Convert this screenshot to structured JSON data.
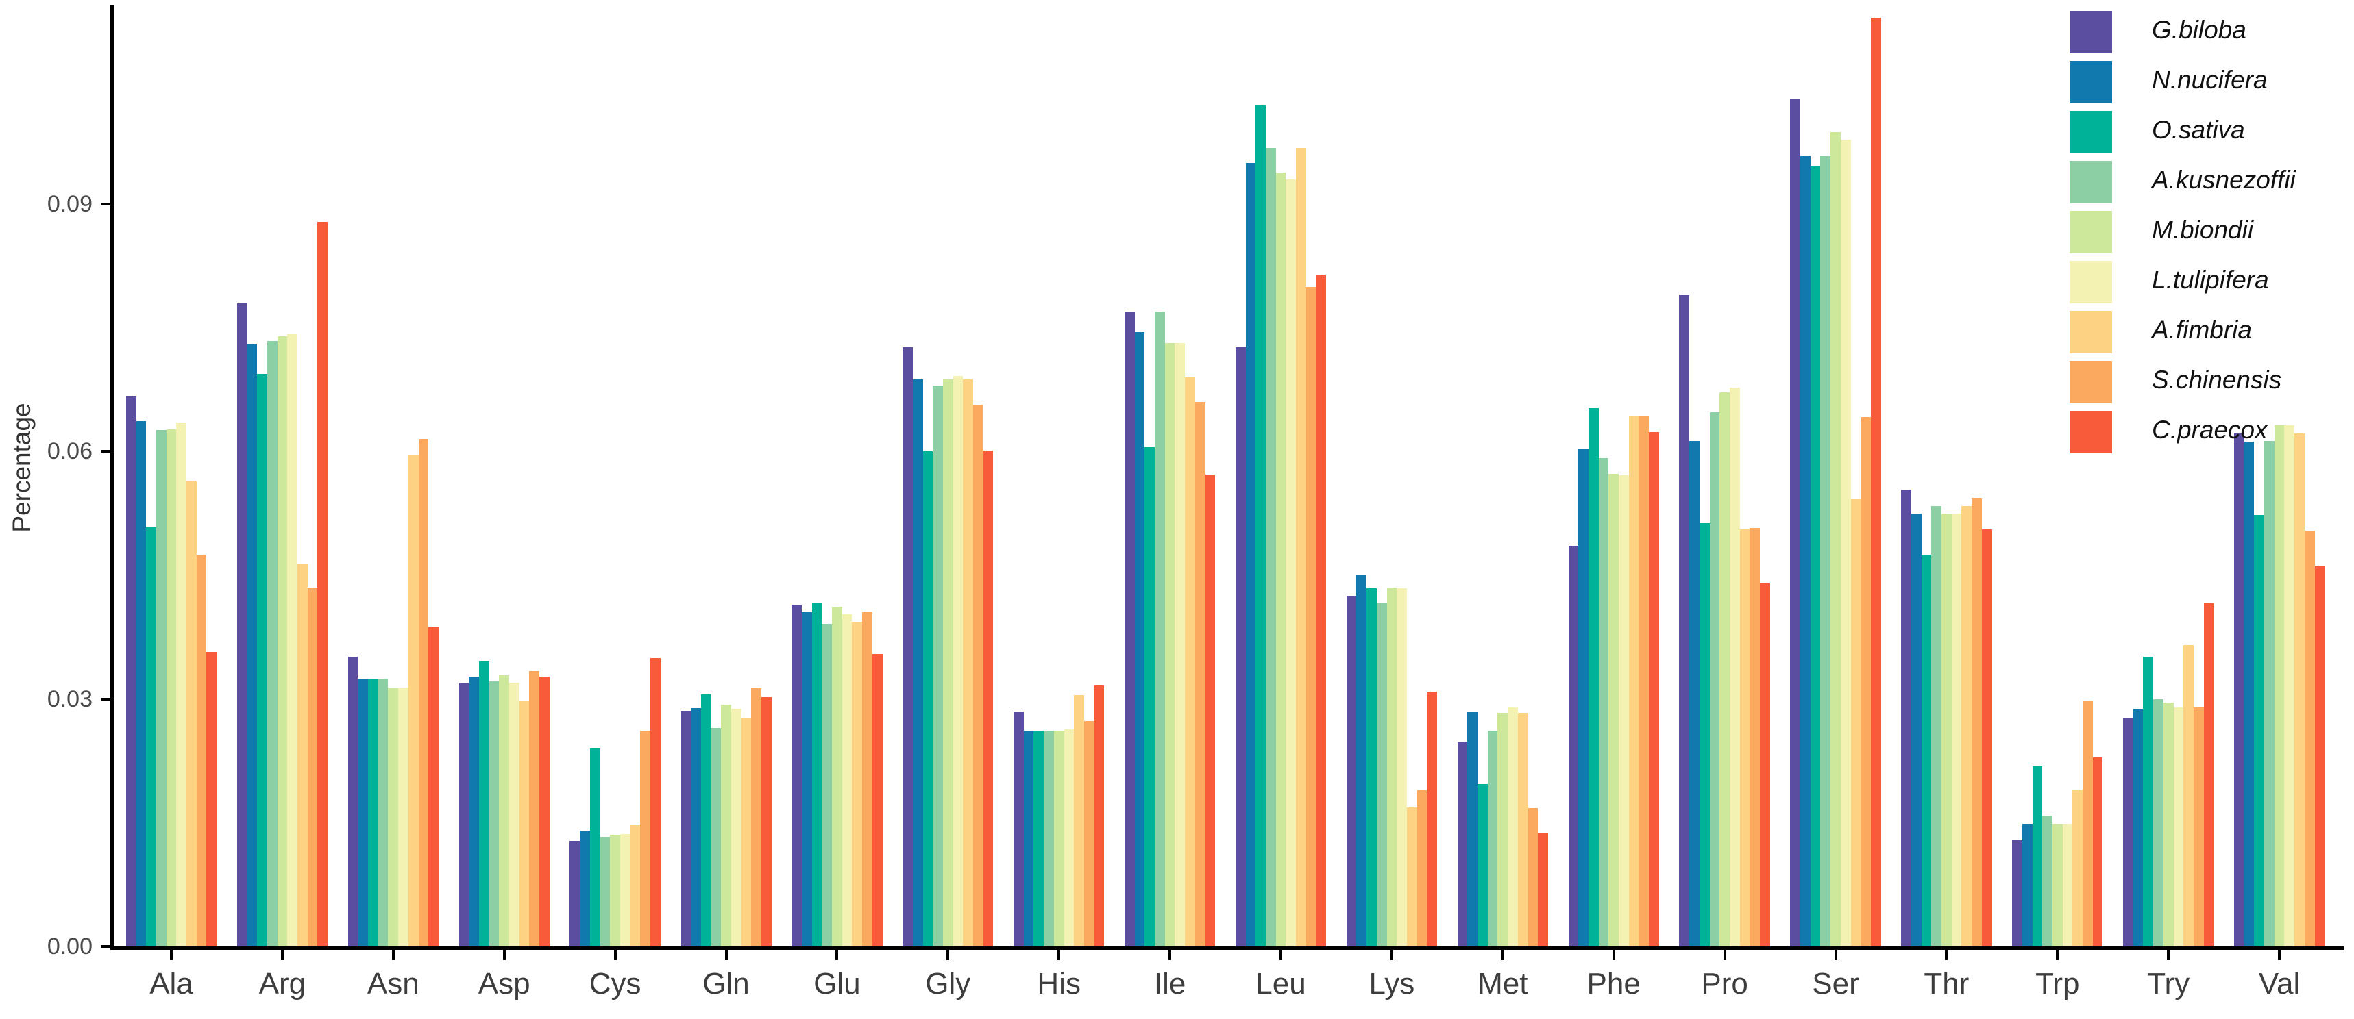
{
  "chart_data": {
    "type": "bar",
    "title": "",
    "xlabel": "",
    "ylabel": "Percentage",
    "ylim": [
      0,
      0.1141
    ],
    "yticks": [
      0,
      0.03,
      0.06,
      0.09
    ],
    "ytick_labels": [
      "0.00",
      "0.03",
      "0.06",
      "0.09"
    ],
    "grid": false,
    "legend_position": "top-right",
    "categories": [
      "Ala",
      "Arg",
      "Asn",
      "Asp",
      "Cys",
      "Gln",
      "Glu",
      "Gly",
      "His",
      "Ile",
      "Leu",
      "Lys",
      "Met",
      "Phe",
      "Pro",
      "Ser",
      "Thr",
      "Trp",
      "Try",
      "Val"
    ],
    "series": [
      {
        "name": "G.biloba",
        "color": "#5b4ea1",
        "values": [
          0.0668,
          0.078,
          0.0351,
          0.032,
          0.0128,
          0.0286,
          0.0414,
          0.0727,
          0.0285,
          0.077,
          0.0727,
          0.0425,
          0.0248,
          0.0486,
          0.079,
          0.1028,
          0.0554,
          0.0129,
          0.0277,
          0.0623
        ]
      },
      {
        "name": "N.nucifera",
        "color": "#1179ae",
        "values": [
          0.0637,
          0.0731,
          0.0325,
          0.0327,
          0.014,
          0.0289,
          0.0405,
          0.0688,
          0.0262,
          0.0745,
          0.095,
          0.045,
          0.0284,
          0.0603,
          0.0613,
          0.0958,
          0.0525,
          0.0149,
          0.0288,
          0.0612
        ]
      },
      {
        "name": "O.sativa",
        "color": "#00b398",
        "values": [
          0.0508,
          0.0694,
          0.0325,
          0.0346,
          0.024,
          0.0306,
          0.0417,
          0.06,
          0.0262,
          0.0605,
          0.102,
          0.0434,
          0.0197,
          0.0653,
          0.0513,
          0.0947,
          0.0475,
          0.0218,
          0.0351,
          0.0523
        ]
      },
      {
        "name": "A.kusnezoffii",
        "color": "#8ccfa4",
        "values": [
          0.0626,
          0.0734,
          0.0325,
          0.0321,
          0.0133,
          0.0265,
          0.0391,
          0.068,
          0.0262,
          0.077,
          0.0968,
          0.0417,
          0.0262,
          0.0592,
          0.0648,
          0.0958,
          0.0534,
          0.0159,
          0.03,
          0.0613
        ]
      },
      {
        "name": "M.biondii",
        "color": "#cde89b",
        "values": [
          0.0627,
          0.074,
          0.0314,
          0.0329,
          0.0135,
          0.0293,
          0.0412,
          0.0688,
          0.0262,
          0.0732,
          0.0938,
          0.0435,
          0.0283,
          0.0573,
          0.0672,
          0.0987,
          0.0525,
          0.0149,
          0.0296,
          0.0632
        ]
      },
      {
        "name": "L.tulipifera",
        "color": "#f4f2b3",
        "values": [
          0.0635,
          0.0742,
          0.0314,
          0.032,
          0.0136,
          0.0288,
          0.0403,
          0.0692,
          0.0263,
          0.0732,
          0.093,
          0.0434,
          0.029,
          0.0571,
          0.0678,
          0.0978,
          0.0525,
          0.0149,
          0.029,
          0.0632
        ]
      },
      {
        "name": "A.fimbria",
        "color": "#fdd283",
        "values": [
          0.0565,
          0.0463,
          0.0596,
          0.0297,
          0.0147,
          0.0277,
          0.0394,
          0.0688,
          0.0305,
          0.069,
          0.0968,
          0.0169,
          0.0283,
          0.0643,
          0.0506,
          0.0543,
          0.0534,
          0.0189,
          0.0365,
          0.0622
        ]
      },
      {
        "name": "S.chinensis",
        "color": "#fba95f",
        "values": [
          0.0475,
          0.0435,
          0.0615,
          0.0334,
          0.0262,
          0.0313,
          0.0405,
          0.0657,
          0.0273,
          0.066,
          0.08,
          0.0189,
          0.0168,
          0.0643,
          0.0507,
          0.0642,
          0.0544,
          0.0298,
          0.029,
          0.0504
        ]
      },
      {
        "name": "C.praecox",
        "color": "#f75b3a",
        "values": [
          0.0357,
          0.0879,
          0.0388,
          0.0327,
          0.035,
          0.0302,
          0.0355,
          0.0601,
          0.0316,
          0.0572,
          0.0815,
          0.0309,
          0.0138,
          0.0624,
          0.0441,
          0.1126,
          0.0506,
          0.0229,
          0.0416,
          0.0462
        ]
      }
    ]
  }
}
